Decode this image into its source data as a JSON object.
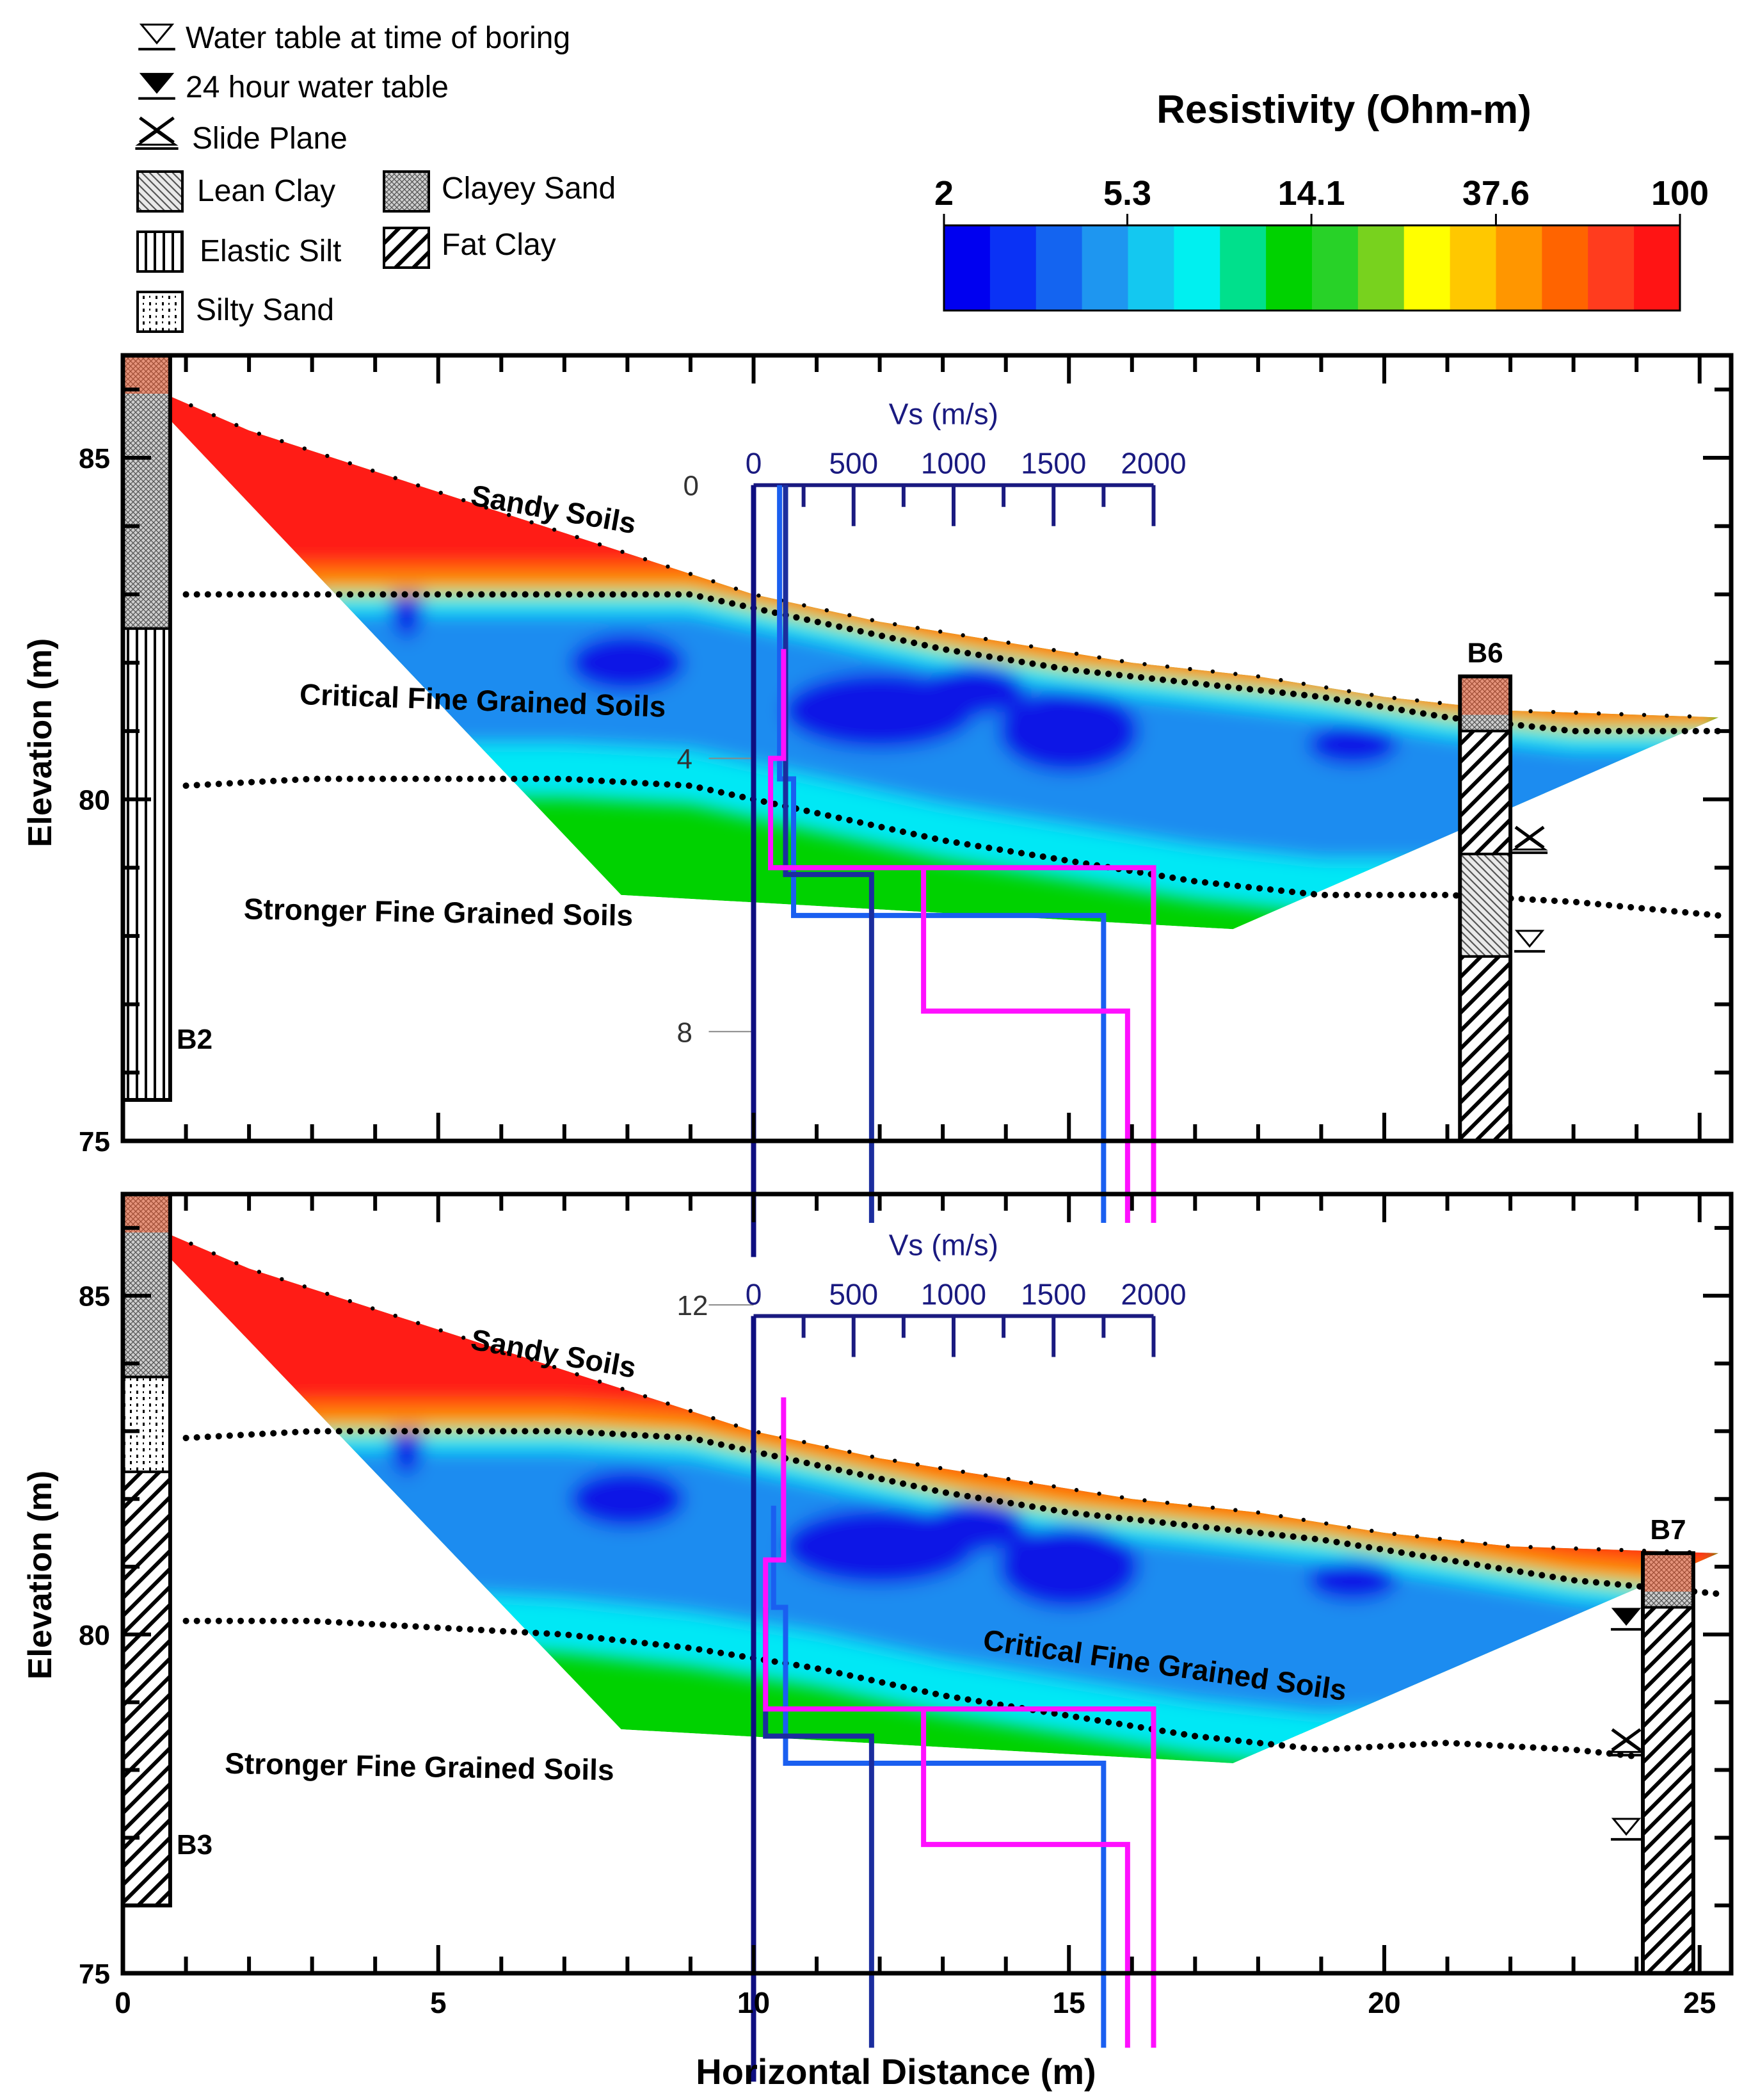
{
  "legend": {
    "items": [
      {
        "key": "water-table-boring",
        "label": "Water table at time of boring",
        "symbol": "wt-open"
      },
      {
        "key": "water-table-24h",
        "label": "24 hour water table",
        "symbol": "wt-filled"
      },
      {
        "key": "slide-plane",
        "label": "Slide Plane",
        "symbol": "slide"
      },
      {
        "key": "lean-clay",
        "label": "Lean Clay",
        "pattern": "lean-clay"
      },
      {
        "key": "elastic-silt",
        "label": "Elastic Silt",
        "pattern": "elastic-silt"
      },
      {
        "key": "silty-sand",
        "label": "Silty Sand",
        "pattern": "silty-sand"
      },
      {
        "key": "clayey-sand",
        "label": "Clayey Sand",
        "pattern": "clayey-sand"
      },
      {
        "key": "fat-clay",
        "label": "Fat Clay",
        "pattern": "fat-clay"
      }
    ]
  },
  "colorbar": {
    "title": "Resistivity (Ohm-m)",
    "tick_labels": [
      "2",
      "5.3",
      "14.1",
      "37.6",
      "100"
    ],
    "tick_values": [
      2,
      5.3,
      14.1,
      37.6,
      100
    ],
    "range": [
      2,
      100
    ],
    "scale": "log",
    "colors": [
      "#0000f0",
      "#0a32f5",
      "#1464f0",
      "#1e96f0",
      "#14c8f0",
      "#00f0f0",
      "#00e08c",
      "#00d200",
      "#28d228",
      "#78d21e",
      "#ffff00",
      "#ffc800",
      "#ff9600",
      "#ff6400",
      "#ff3c1e",
      "#ff1414"
    ]
  },
  "chart_data": [
    {
      "type": "resistivity-section",
      "panel": "top",
      "xlabel": "Horizontal Distance (m)",
      "ylabel": "Elevation (m)",
      "xlim": [
        0,
        25.5
      ],
      "ylim": [
        75,
        86.5
      ],
      "x_ticks": [
        0,
        5,
        10,
        15,
        20,
        25
      ],
      "y_ticks": [
        75,
        80,
        85
      ],
      "section_outline": [
        [
          0,
          86.2
        ],
        [
          2,
          85.4
        ],
        [
          4,
          84.8
        ],
        [
          6,
          84.2
        ],
        [
          8,
          83.6
        ],
        [
          10,
          83.0
        ],
        [
          12,
          82.6
        ],
        [
          14,
          82.3
        ],
        [
          16,
          82.0
        ],
        [
          18,
          81.8
        ],
        [
          20,
          81.5
        ],
        [
          22,
          81.3
        ],
        [
          25.3,
          81.2
        ],
        [
          17.6,
          78.1
        ],
        [
          7.9,
          78.6
        ],
        [
          0.7,
          85.6
        ]
      ],
      "zones": [
        {
          "label": "Sandy Soils",
          "x": 6.8,
          "y": 84.1,
          "angle": 10
        },
        {
          "label": "Critical Fine Grained Soils",
          "x": 5.7,
          "y": 81.3,
          "angle": 2
        },
        {
          "label": "Stronger Fine Grained Soils",
          "x": 5.0,
          "y": 78.2,
          "angle": 1
        }
      ],
      "boundaries": [
        {
          "name": "upper",
          "points": [
            [
              1,
              83.0
            ],
            [
              3,
              83.0
            ],
            [
              5,
              83.0
            ],
            [
              7,
              83.0
            ],
            [
              9,
              83.0
            ],
            [
              11,
              82.6
            ],
            [
              13,
              82.2
            ],
            [
              15,
              81.9
            ],
            [
              17,
              81.7
            ],
            [
              19,
              81.5
            ],
            [
              21,
              81.2
            ],
            [
              23,
              81.0
            ],
            [
              25.3,
              81.0
            ]
          ]
        },
        {
          "name": "lower",
          "points": [
            [
              1,
              80.2
            ],
            [
              3,
              80.3
            ],
            [
              5,
              80.3
            ],
            [
              7,
              80.3
            ],
            [
              9,
              80.2
            ],
            [
              11,
              79.8
            ],
            [
              13,
              79.4
            ],
            [
              15,
              79.1
            ],
            [
              17,
              78.8
            ],
            [
              19,
              78.6
            ],
            [
              21,
              78.6
            ],
            [
              23,
              78.5
            ],
            [
              25.3,
              78.3
            ]
          ]
        }
      ],
      "vs_profile": {
        "title": "Vs (m/s)",
        "origin_x_m": 10,
        "top_elev": 84.6,
        "vs_ticks": [
          0,
          500,
          1000,
          1500,
          2000
        ],
        "depth_ticks": [
          0,
          4,
          8,
          12
        ],
        "series": [
          {
            "name": "Vs profile 1",
            "color": "#0e0e80",
            "steps": [
              [
                0,
                0
              ],
              [
                0,
                11.3
              ]
            ]
          },
          {
            "name": "Vs profile 2",
            "color": "#1a5ff0",
            "steps": [
              [
                130,
                0
              ],
              [
                130,
                4.3
              ],
              [
                200,
                4.3
              ],
              [
                200,
                6.3
              ],
              [
                1750,
                6.3
              ],
              [
                1750,
                10.8
              ]
            ]
          },
          {
            "name": "Vs profile 3",
            "color": "#1b2d9e",
            "steps": [
              [
                160,
                0
              ],
              [
                160,
                5.7
              ],
              [
                590,
                5.7
              ],
              [
                590,
                10.8
              ]
            ]
          },
          {
            "name": "Vs profile 4",
            "color": "#ff10ff",
            "steps": [
              [
                150,
                2.4
              ],
              [
                150,
                4.0
              ],
              [
                85,
                4.0
              ],
              [
                85,
                5.6
              ],
              [
                2000,
                5.6
              ],
              [
                2000,
                10.8
              ]
            ]
          },
          {
            "name": "Vs profile 5",
            "color": "#ff10ff",
            "steps": [
              [
                850,
                5.6
              ],
              [
                850,
                7.7
              ],
              [
                1870,
                7.7
              ],
              [
                1870,
                10.8
              ]
            ]
          }
        ]
      },
      "borings": [
        {
          "name": "B2",
          "x": 0,
          "width": 0.75,
          "top": 86.5,
          "bottom": 75.6,
          "layers": [
            {
              "top": 86.5,
              "bottom": 82.5,
              "pattern": "clayey-sand"
            },
            {
              "top": 82.5,
              "bottom": 75.6,
              "pattern": "elastic-silt"
            }
          ]
        },
        {
          "name": "B6",
          "x": 21.2,
          "width": 0.8,
          "top": 81.8,
          "bottom": 75.0,
          "layers": [
            {
              "top": 81.8,
              "bottom": 81.0,
              "pattern": "clayey-sand"
            },
            {
              "top": 81.0,
              "bottom": 79.2,
              "pattern": "fat-clay"
            },
            {
              "top": 79.2,
              "bottom": 77.7,
              "pattern": "lean-clay"
            },
            {
              "top": 77.7,
              "bottom": 75.0,
              "pattern": "fat-clay"
            }
          ],
          "markers": [
            {
              "type": "slide",
              "elev": 79.2
            },
            {
              "type": "wt-open",
              "elev": 77.7
            }
          ]
        }
      ]
    },
    {
      "type": "resistivity-section",
      "panel": "bottom",
      "xlabel": "Horizontal Distance (m)",
      "ylabel": "Elevation (m)",
      "xlim": [
        0,
        25.5
      ],
      "ylim": [
        75,
        86.5
      ],
      "x_ticks": [
        0,
        5,
        10,
        15,
        20,
        25
      ],
      "y_ticks": [
        75,
        80,
        85
      ],
      "section_outline": [
        [
          0,
          86.2
        ],
        [
          2,
          85.4
        ],
        [
          4,
          84.8
        ],
        [
          6,
          84.2
        ],
        [
          8,
          83.6
        ],
        [
          10,
          83.0
        ],
        [
          12,
          82.6
        ],
        [
          14,
          82.3
        ],
        [
          16,
          82.0
        ],
        [
          18,
          81.8
        ],
        [
          20,
          81.5
        ],
        [
          22,
          81.3
        ],
        [
          25.3,
          81.2
        ],
        [
          17.6,
          78.1
        ],
        [
          7.9,
          78.6
        ],
        [
          0.7,
          85.6
        ]
      ],
      "zones": [
        {
          "label": "Sandy Soils",
          "x": 6.8,
          "y": 84.0,
          "angle": 10
        },
        {
          "label": "Critical Fine Grained Soils",
          "x": 16.5,
          "y": 79.4,
          "angle": 8
        },
        {
          "label": "Stronger Fine Grained Soils",
          "x": 4.7,
          "y": 77.9,
          "angle": 1
        }
      ],
      "boundaries": [
        {
          "name": "upper",
          "points": [
            [
              1,
              82.9
            ],
            [
              3,
              83.0
            ],
            [
              5,
              83.0
            ],
            [
              7,
              83.0
            ],
            [
              9,
              82.9
            ],
            [
              11,
              82.5
            ],
            [
              13,
              82.1
            ],
            [
              15,
              81.8
            ],
            [
              17,
              81.6
            ],
            [
              19,
              81.4
            ],
            [
              21,
              81.1
            ],
            [
              23,
              80.8
            ],
            [
              25.3,
              80.6
            ]
          ]
        },
        {
          "name": "lower",
          "points": [
            [
              1,
              80.2
            ],
            [
              3,
              80.2
            ],
            [
              5,
              80.1
            ],
            [
              7,
              80.0
            ],
            [
              9,
              79.8
            ],
            [
              11,
              79.5
            ],
            [
              13,
              79.1
            ],
            [
              15,
              78.8
            ],
            [
              17,
              78.5
            ],
            [
              19,
              78.3
            ],
            [
              21,
              78.4
            ],
            [
              23,
              78.3
            ],
            [
              24,
              78.2
            ]
          ]
        }
      ],
      "vs_profile": {
        "title": "Vs (m/s)",
        "origin_x_m": 10,
        "top_elev": 84.7,
        "vs_ticks": [
          0,
          500,
          1000,
          1500,
          2000
        ],
        "depth_ticks": [],
        "series": [
          {
            "name": "Vs profile 1",
            "color": "#0e0e80",
            "steps": [
              [
                0,
                0
              ],
              [
                0,
                11.3
              ]
            ]
          },
          {
            "name": "Vs profile 2",
            "color": "#1a5ff0",
            "steps": [
              [
                100,
                2.8
              ],
              [
                100,
                4.3
              ],
              [
                160,
                4.3
              ],
              [
                160,
                6.6
              ],
              [
                1750,
                6.6
              ],
              [
                1750,
                10.8
              ]
            ]
          },
          {
            "name": "Vs profile 3",
            "color": "#1b2d9e",
            "steps": [
              [
                60,
                4.3
              ],
              [
                60,
                6.2
              ],
              [
                590,
                6.2
              ],
              [
                590,
                10.8
              ]
            ]
          },
          {
            "name": "Vs profile 4",
            "color": "#ff10ff",
            "steps": [
              [
                150,
                1.2
              ],
              [
                150,
                3.6
              ],
              [
                60,
                3.6
              ],
              [
                60,
                5.8
              ],
              [
                2000,
                5.8
              ],
              [
                2000,
                10.8
              ]
            ]
          },
          {
            "name": "Vs profile 5",
            "color": "#ff10ff",
            "steps": [
              [
                850,
                5.8
              ],
              [
                850,
                7.8
              ],
              [
                1870,
                7.8
              ],
              [
                1870,
                10.8
              ]
            ]
          }
        ]
      },
      "borings": [
        {
          "name": "B3",
          "x": 0,
          "width": 0.75,
          "top": 86.5,
          "bottom": 76.0,
          "layers": [
            {
              "top": 86.5,
              "bottom": 83.8,
              "pattern": "clayey-sand"
            },
            {
              "top": 83.8,
              "bottom": 82.4,
              "pattern": "silty-sand"
            },
            {
              "top": 82.4,
              "bottom": 76.0,
              "pattern": "fat-clay"
            }
          ]
        },
        {
          "name": "B7",
          "x": 24.1,
          "width": 0.8,
          "top": 81.2,
          "bottom": 75.0,
          "layers": [
            {
              "top": 81.2,
              "bottom": 80.4,
              "pattern": "clayey-sand"
            },
            {
              "top": 80.4,
              "bottom": 75.0,
              "pattern": "fat-clay"
            }
          ],
          "markers": [
            {
              "type": "wt-filled",
              "elev": 80.0
            },
            {
              "type": "slide",
              "elev": 78.2
            },
            {
              "type": "wt-open",
              "elev": 76.9
            }
          ]
        }
      ]
    }
  ]
}
